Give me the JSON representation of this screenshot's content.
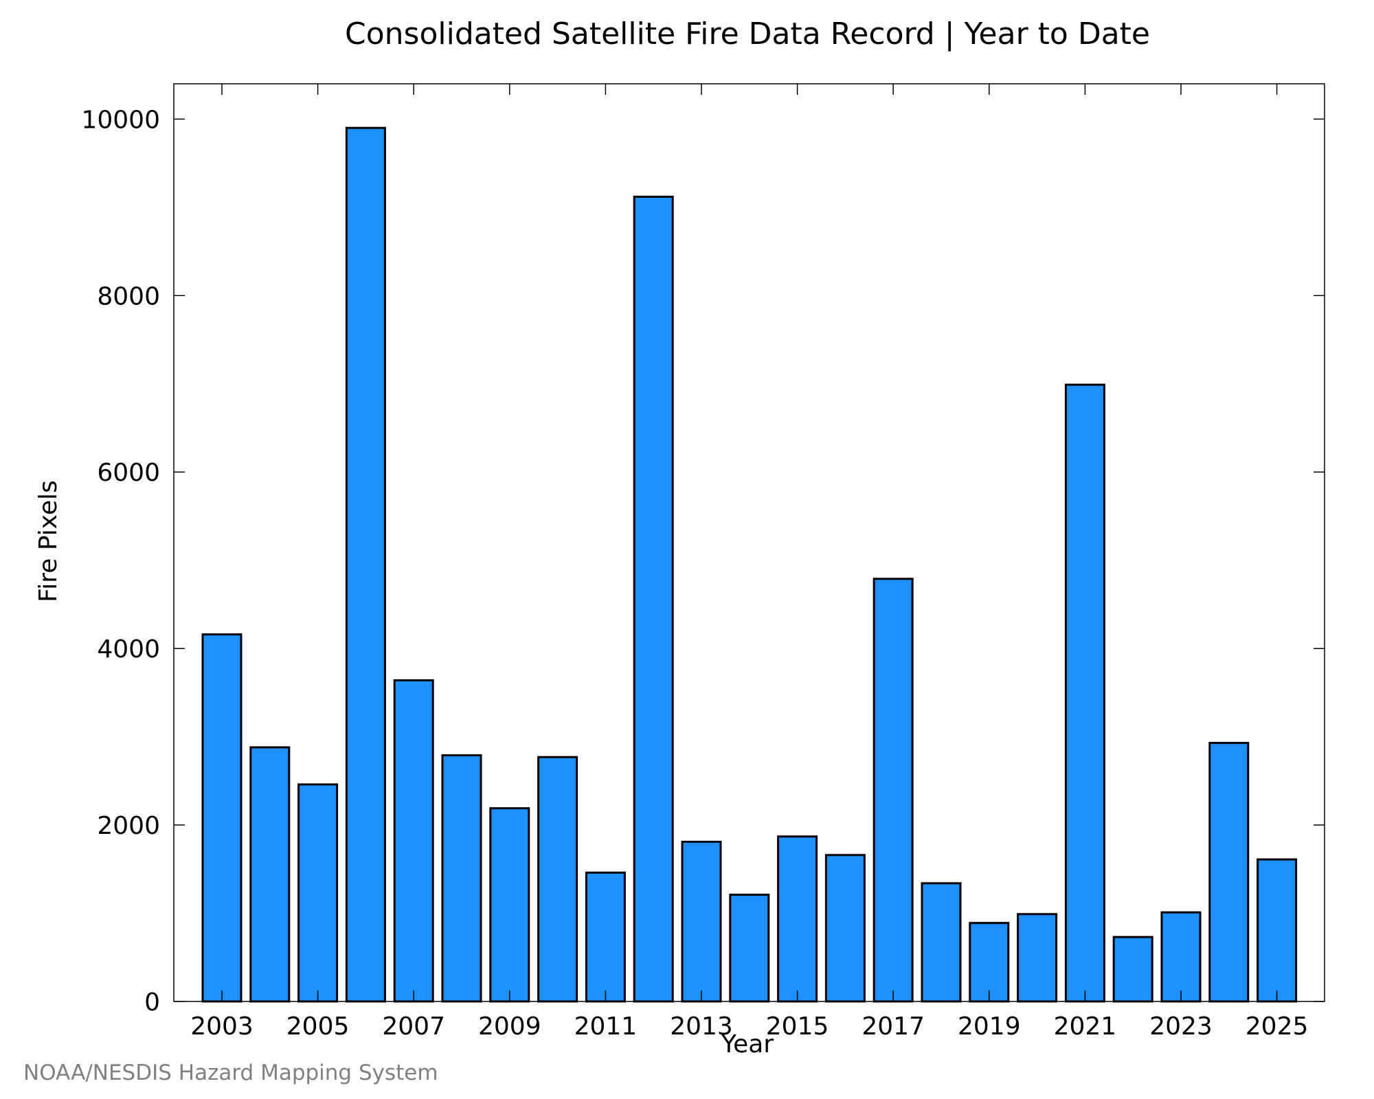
{
  "chart_data": {
    "type": "bar",
    "title": "Consolidated Satellite Fire Data Record | Year to Date",
    "xlabel": "Year",
    "ylabel": "Fire Pixels",
    "credit": "NOAA/NESDIS Hazard Mapping System",
    "categories": [
      "2003",
      "2004",
      "2005",
      "2006",
      "2007",
      "2008",
      "2009",
      "2010",
      "2011",
      "2012",
      "2013",
      "2014",
      "2015",
      "2016",
      "2017",
      "2018",
      "2019",
      "2020",
      "2021",
      "2022",
      "2023",
      "2024",
      "2025"
    ],
    "values": [
      4160,
      2880,
      2460,
      9900,
      3640,
      2790,
      2190,
      2770,
      1460,
      9120,
      1810,
      1210,
      1870,
      1660,
      4790,
      1340,
      890,
      990,
      6990,
      730,
      1010,
      2930,
      1610
    ],
    "x_tick_labels": [
      "2003",
      "2005",
      "2007",
      "2009",
      "2011",
      "2013",
      "2015",
      "2017",
      "2019",
      "2021",
      "2023",
      "2025"
    ],
    "y_ticks": [
      0,
      2000,
      4000,
      6000,
      8000,
      10000
    ],
    "ylim": [
      0,
      10400
    ],
    "grid": false,
    "colors": {
      "bar_fill": "#1e90ff",
      "bar_stroke": "#000000",
      "credit_text": "#808080"
    }
  }
}
